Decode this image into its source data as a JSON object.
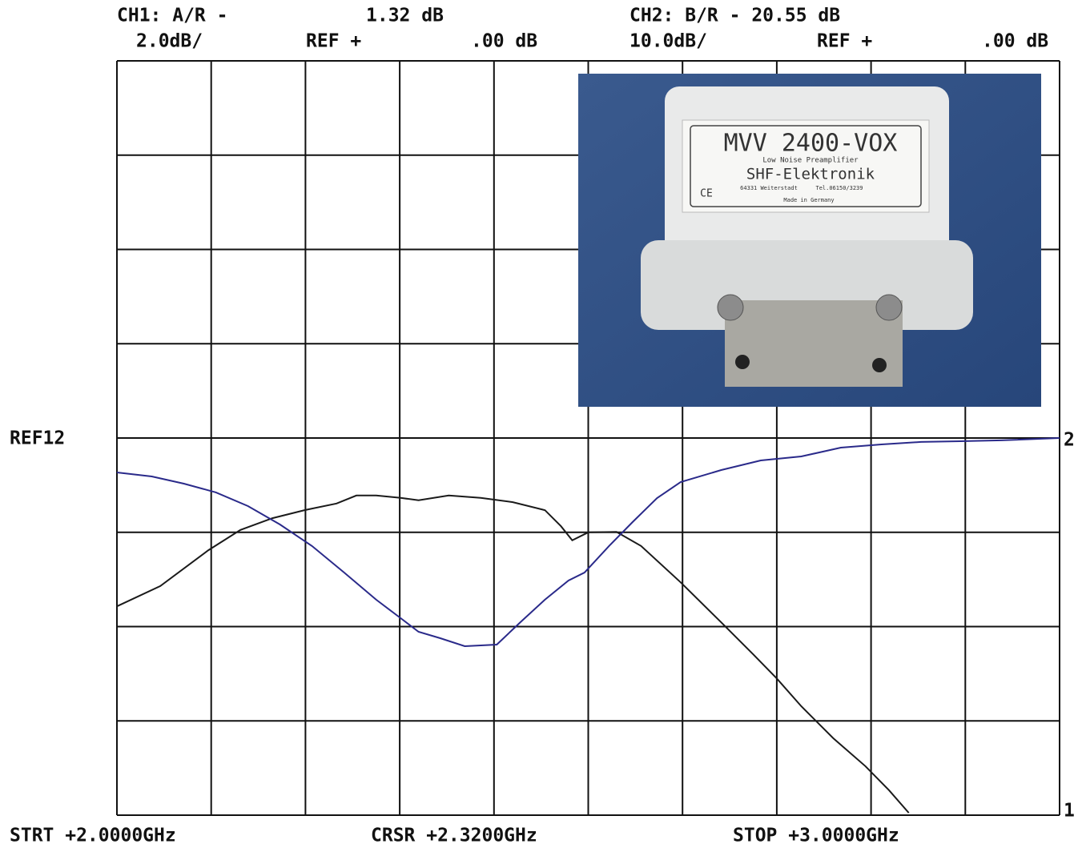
{
  "chart_data": {
    "type": "line",
    "annotations": [
      "CH1: A/R -",
      "1.32 dB",
      "CH2: B/R - 20.55 dB",
      "2.0dB/",
      "REF +",
      ".00 dB",
      "10.0dB/",
      "REF +",
      ".00 dB",
      "REF12",
      "2",
      "1",
      "STRT +2.0000GHz",
      "CRSR +2.3200GHz",
      "STOP +3.0000GHz"
    ],
    "xlim": [
      2,
      3
    ],
    "ylim": [
      -8,
      8
    ],
    "y2lim": [
      -40,
      40
    ],
    "series": [
      {
        "name": "CH1: A/R",
        "color": "#1a1a1a",
        "x": [
          2.0,
          2.046,
          2.097,
          2.131,
          2.165,
          2.199,
          2.233,
          2.254,
          2.275,
          2.301,
          2.32,
          2.352,
          2.386,
          2.42,
          2.454,
          2.471,
          2.483,
          2.5,
          2.53,
          2.556,
          2.598,
          2.641,
          2.675,
          2.7,
          2.726,
          2.76,
          2.794,
          2.819,
          2.84
        ],
        "values": [
          -3.57,
          -3.14,
          -2.38,
          -1.95,
          -1.7,
          -1.53,
          -1.39,
          -1.22,
          -1.22,
          -1.27,
          -1.32,
          -1.22,
          -1.27,
          -1.36,
          -1.53,
          -1.87,
          -2.17,
          -2.0,
          -1.99,
          -2.29,
          -3.06,
          -3.91,
          -4.59,
          -5.1,
          -5.69,
          -6.37,
          -6.96,
          -7.47,
          -7.95
        ]
      },
      {
        "name": "CH2: B/R",
        "color": "#2a2a8a",
        "axis": "y2",
        "x": [
          2.0,
          2.037,
          2.071,
          2.105,
          2.139,
          2.173,
          2.207,
          2.241,
          2.275,
          2.301,
          2.32,
          2.343,
          2.369,
          2.403,
          2.428,
          2.454,
          2.479,
          2.496,
          2.522,
          2.547,
          2.573,
          2.598,
          2.641,
          2.683,
          2.726,
          2.768,
          2.811,
          2.853,
          2.895,
          2.938,
          3.0
        ],
        "values": [
          -3.65,
          -4.08,
          -4.84,
          -5.77,
          -7.22,
          -9.17,
          -11.46,
          -14.27,
          -17.15,
          -19.11,
          -20.55,
          -21.23,
          -22.08,
          -21.91,
          -19.53,
          -17.15,
          -15.12,
          -14.27,
          -11.46,
          -8.92,
          -6.37,
          -4.67,
          -3.4,
          -2.38,
          -1.95,
          -1.02,
          -0.68,
          -0.42,
          -0.34,
          -0.25,
          0
        ]
      }
    ]
  },
  "inset": {
    "texts": [
      "MVV 2400-VOX",
      "Low Noise Preamplifier",
      "SHF-Elektronik",
      "64331 Weiterstadt",
      "Tel.06150/3239",
      "Made in Germany",
      "CE"
    ]
  }
}
